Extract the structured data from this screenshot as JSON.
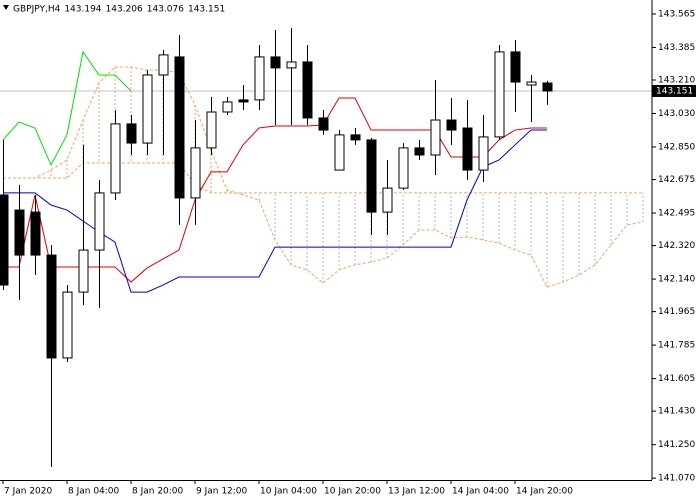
{
  "chart_data": {
    "type": "candlestick",
    "title": "GBPJPY,H4",
    "categories": [
      "7 Jan 2020",
      null,
      null,
      null,
      "8 Jan 04:00",
      null,
      null,
      null,
      "8 Jan 20:00",
      null,
      null,
      null,
      "9 Jan 12:00",
      null,
      null,
      null,
      "10 Jan 04:00",
      null,
      null,
      null,
      "10 Jan 20:00",
      null,
      null,
      null,
      "13 Jan 12:00",
      null,
      null,
      null,
      "14 Jan 04:00",
      null,
      null,
      null,
      "14 Jan 20:00",
      null,
      null,
      null,
      null,
      null,
      null,
      null,
      null
    ],
    "open": [
      142.592,
      142.511,
      142.5,
      142.269,
      141.716,
      142.07,
      142.296,
      142.603,
      142.974,
      142.871,
      143.237,
      143.334,
      142.576,
      142.845,
      143.038,
      143.103,
      143.103,
      143.334,
      143.275,
      143.307,
      143.006,
      142.726,
      142.915,
      142.888,
      142.5,
      142.629,
      142.845,
      142.807,
      142.995,
      142.952,
      142.726,
      142.904,
      143.361,
      143.183,
      143.194,
      null,
      null,
      null,
      null,
      null,
      null
    ],
    "high": [
      142.888,
      142.646,
      142.592,
      142.323,
      142.108,
      142.861,
      142.673,
      143.049,
      143.022,
      143.264,
      143.371,
      143.452,
      142.995,
      143.119,
      143.119,
      143.183,
      143.398,
      143.479,
      143.49,
      143.398,
      143.049,
      142.941,
      142.952,
      142.898,
      142.78,
      142.871,
      142.888,
      143.21,
      143.113,
      143.103,
      143.022,
      143.398,
      143.425,
      143.237,
      143.206,
      null,
      null,
      null,
      null,
      null,
      null
    ],
    "low": [
      142.081,
      142.027,
      142.162,
      141.13,
      141.694,
      142.0,
      141.984,
      142.565,
      142.807,
      142.807,
      142.807,
      142.431,
      142.431,
      142.807,
      143.022,
      143.049,
      143.049,
      142.968,
      142.968,
      142.968,
      142.915,
      142.726,
      142.861,
      142.377,
      142.377,
      142.619,
      142.78,
      142.699,
      142.861,
      142.673,
      142.662,
      142.888,
      143.038,
      142.984,
      143.076,
      null,
      null,
      null,
      null,
      null,
      null
    ],
    "close": [
      142.108,
      142.269,
      142.269,
      141.716,
      142.07,
      142.296,
      142.603,
      142.974,
      142.871,
      143.237,
      143.345,
      142.576,
      142.845,
      143.038,
      143.092,
      143.092,
      143.334,
      143.275,
      143.307,
      143.006,
      142.941,
      142.915,
      142.888,
      142.5,
      142.629,
      142.845,
      142.807,
      142.995,
      142.941,
      142.726,
      142.904,
      143.361,
      143.199,
      143.199,
      143.151,
      null,
      null,
      null,
      null,
      null,
      null
    ],
    "bull_color": "#ffffff",
    "bear_color": "#000000",
    "series": [
      {
        "color": "#e00000",
        "values": [
          142.205,
          142.205,
          142.592,
          142.205,
          142.205,
          142.205,
          142.205,
          142.205,
          142.124,
          142.199,
          142.248,
          142.296,
          142.565,
          142.716,
          142.716,
          142.861,
          142.952,
          142.963,
          142.963,
          142.963,
          142.968,
          143.113,
          143.113,
          142.941,
          142.941,
          142.941,
          142.941,
          142.941,
          142.796,
          142.796,
          142.796,
          142.888,
          142.941,
          142.952,
          142.952,
          null,
          null,
          null,
          null,
          null,
          null
        ]
      },
      {
        "color": "#0000cc",
        "values": [
          142.603,
          142.603,
          142.603,
          142.538,
          142.511,
          142.452,
          142.393,
          142.339,
          142.07,
          142.07,
          142.108,
          142.151,
          142.151,
          142.151,
          142.151,
          142.151,
          142.151,
          142.312,
          142.312,
          142.312,
          142.312,
          142.312,
          142.312,
          142.312,
          142.312,
          142.312,
          142.312,
          142.312,
          142.312,
          142.565,
          142.742,
          142.78,
          142.861,
          142.941,
          142.941,
          null,
          null,
          null,
          null,
          null,
          null
        ]
      },
      {
        "color": "#00e000",
        "values": [
          142.888,
          142.984,
          142.952,
          142.753,
          142.915,
          143.361,
          143.237,
          143.237,
          143.151,
          null,
          null,
          null,
          null,
          null,
          null,
          null,
          null,
          null,
          null,
          null,
          null,
          null,
          null,
          null,
          null,
          null,
          null,
          null,
          null,
          null,
          null,
          null,
          null,
          null,
          null,
          null,
          null,
          null,
          null,
          null,
          null
        ]
      }
    ],
    "cloud": {
      "span_a": [
        142.683,
        142.683,
        142.683,
        142.726,
        142.78,
        142.995,
        143.194,
        143.28,
        143.28,
        143.264,
        143.264,
        143.248,
        143.076,
        142.834,
        142.619,
        142.592,
        142.565,
        142.35,
        142.216,
        142.189,
        142.119,
        142.189,
        142.216,
        142.232,
        142.253,
        142.323,
        142.404,
        142.404,
        142.361,
        142.366,
        142.35,
        142.334,
        142.296,
        142.269,
        142.097,
        142.124,
        142.162,
        142.216,
        142.323,
        142.431,
        142.447
      ],
      "span_b": [
        142.683,
        142.683,
        142.683,
        142.683,
        142.683,
        142.764,
        142.764,
        142.764,
        142.764,
        142.764,
        142.764,
        142.764,
        142.646,
        142.603,
        142.603,
        142.603,
        142.603,
        142.603,
        142.603,
        142.603,
        142.603,
        142.603,
        142.603,
        142.603,
        142.603,
        142.603,
        142.603,
        142.603,
        142.603,
        142.603,
        142.603,
        142.603,
        142.603,
        142.603,
        142.603,
        142.603,
        142.603,
        142.603,
        142.603,
        142.603,
        142.603
      ],
      "bull_color": "#f4a460",
      "bear_color": "#c8b0c8"
    },
    "last_price": 143.151,
    "ylim": [
      141.06,
      143.64
    ],
    "yticks": [
      143.565,
      143.385,
      {
        "value": 143.21,
        "label": "143.210"
      },
      {
        "value": 143.03,
        "label": "143.030"
      },
      {
        "value": 142.85,
        "label": "142.850"
      },
      142.675,
      142.495,
      {
        "value": 142.32,
        "label": "142.320"
      },
      {
        "value": 142.14,
        "label": "142.140"
      },
      141.965,
      141.785,
      141.605,
      {
        "value": 141.43,
        "label": "141.430"
      },
      {
        "value": 141.25,
        "label": "141.250"
      },
      {
        "value": 141.07,
        "label": "141.070"
      }
    ]
  }
}
